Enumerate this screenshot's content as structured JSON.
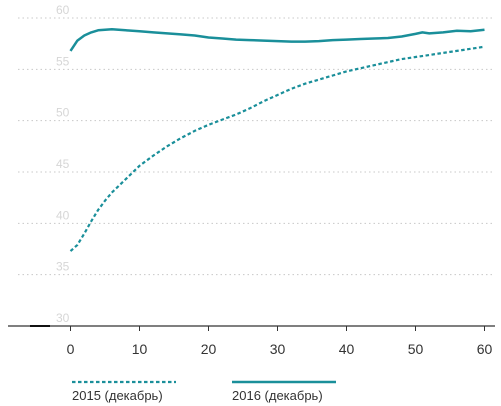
{
  "chart_data": {
    "type": "line",
    "title": "",
    "xlabel": "",
    "ylabel": "",
    "xlim": [
      -5,
      60
    ],
    "ylim": [
      30,
      60
    ],
    "x_ticks": [
      "0",
      "10",
      "20",
      "30",
      "40",
      "50",
      "60"
    ],
    "y_ticks": [
      "30",
      "35",
      "40",
      "45",
      "50",
      "55",
      "60"
    ],
    "grid": true,
    "legend_position": "bottom-left",
    "series": [
      {
        "name": "2015 (декабрь)",
        "color": "#1a8f9a",
        "style": "dashed",
        "points": [
          [
            0,
            37.3
          ],
          [
            1,
            37.9
          ],
          [
            2,
            39.0
          ],
          [
            3,
            40.2
          ],
          [
            4,
            41.3
          ],
          [
            5,
            42.2
          ],
          [
            6,
            43.0
          ],
          [
            8,
            44.3
          ],
          [
            10,
            45.6
          ],
          [
            12,
            46.6
          ],
          [
            14,
            47.5
          ],
          [
            16,
            48.3
          ],
          [
            18,
            49.0
          ],
          [
            20,
            49.6
          ],
          [
            22,
            50.1
          ],
          [
            24,
            50.6
          ],
          [
            26,
            51.2
          ],
          [
            28,
            51.9
          ],
          [
            30,
            52.5
          ],
          [
            32,
            53.1
          ],
          [
            34,
            53.6
          ],
          [
            36,
            54.0
          ],
          [
            38,
            54.4
          ],
          [
            40,
            54.8
          ],
          [
            42,
            55.1
          ],
          [
            44,
            55.4
          ],
          [
            46,
            55.7
          ],
          [
            48,
            56.0
          ],
          [
            50,
            56.2
          ],
          [
            52,
            56.4
          ],
          [
            54,
            56.6
          ],
          [
            56,
            56.8
          ],
          [
            58,
            57.0
          ],
          [
            60,
            57.2
          ]
        ]
      },
      {
        "name": "2016 (декабрь)",
        "color": "#1a8f9a",
        "style": "solid",
        "points": [
          [
            0,
            56.8
          ],
          [
            1,
            57.8
          ],
          [
            2,
            58.3
          ],
          [
            3,
            58.6
          ],
          [
            4,
            58.8
          ],
          [
            6,
            58.9
          ],
          [
            8,
            58.8
          ],
          [
            10,
            58.7
          ],
          [
            12,
            58.6
          ],
          [
            14,
            58.5
          ],
          [
            16,
            58.4
          ],
          [
            18,
            58.3
          ],
          [
            20,
            58.1
          ],
          [
            22,
            58.0
          ],
          [
            24,
            57.9
          ],
          [
            26,
            57.85
          ],
          [
            28,
            57.8
          ],
          [
            30,
            57.75
          ],
          [
            32,
            57.7
          ],
          [
            34,
            57.7
          ],
          [
            36,
            57.75
          ],
          [
            38,
            57.85
          ],
          [
            40,
            57.9
          ],
          [
            42,
            57.95
          ],
          [
            44,
            58.0
          ],
          [
            46,
            58.05
          ],
          [
            48,
            58.2
          ],
          [
            50,
            58.45
          ],
          [
            51,
            58.6
          ],
          [
            52,
            58.5
          ],
          [
            54,
            58.6
          ],
          [
            56,
            58.75
          ],
          [
            58,
            58.7
          ],
          [
            60,
            58.85
          ]
        ]
      }
    ]
  }
}
